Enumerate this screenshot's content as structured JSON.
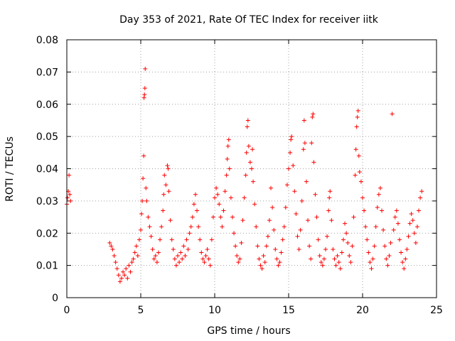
{
  "chart_data": {
    "type": "scatter",
    "title": "Day 353 of 2021, Rate Of TEC Index for receiver iitk",
    "xlabel": "GPS time / hours",
    "ylabel": "ROTI / TECUs",
    "xlim": [
      0,
      25
    ],
    "ylim": [
      0,
      0.08
    ],
    "xticks": [
      0,
      5,
      10,
      15,
      20,
      25
    ],
    "xtick_labels": [
      "0",
      "5",
      "10",
      "15",
      "20",
      "25"
    ],
    "yticks": [
      0,
      0.01,
      0.02,
      0.03,
      0.04,
      0.05,
      0.06,
      0.07,
      0.08
    ],
    "ytick_labels": [
      "0",
      "0.01",
      "0.02",
      "0.03",
      "0.04",
      "0.05",
      "0.06",
      "0.07",
      "0.08"
    ],
    "grid": true,
    "marker": "plus",
    "color": "#ff0000",
    "series": [
      {
        "points": [
          [
            0.0,
            0.029
          ],
          [
            0.05,
            0.031
          ],
          [
            0.1,
            0.033
          ],
          [
            0.15,
            0.038
          ],
          [
            0.2,
            0.032
          ],
          [
            0.25,
            0.03
          ],
          [
            2.9,
            0.017
          ],
          [
            3.0,
            0.016
          ],
          [
            3.1,
            0.015
          ],
          [
            3.2,
            0.013
          ],
          [
            3.3,
            0.011
          ],
          [
            3.4,
            0.009
          ],
          [
            3.5,
            0.007
          ],
          [
            3.6,
            0.005
          ],
          [
            3.7,
            0.006
          ],
          [
            3.8,
            0.008
          ],
          [
            3.9,
            0.007
          ],
          [
            4.0,
            0.009
          ],
          [
            4.1,
            0.006
          ],
          [
            4.2,
            0.01
          ],
          [
            4.3,
            0.008
          ],
          [
            4.4,
            0.011
          ],
          [
            4.5,
            0.012
          ],
          [
            4.6,
            0.014
          ],
          [
            4.7,
            0.016
          ],
          [
            4.8,
            0.013
          ],
          [
            4.9,
            0.018
          ],
          [
            5.0,
            0.021
          ],
          [
            5.05,
            0.026
          ],
          [
            5.1,
            0.03
          ],
          [
            5.15,
            0.037
          ],
          [
            5.2,
            0.044
          ],
          [
            5.22,
            0.062
          ],
          [
            5.25,
            0.063
          ],
          [
            5.28,
            0.065
          ],
          [
            5.3,
            0.071
          ],
          [
            5.35,
            0.034
          ],
          [
            5.4,
            0.03
          ],
          [
            5.5,
            0.025
          ],
          [
            5.6,
            0.022
          ],
          [
            5.7,
            0.019
          ],
          [
            5.8,
            0.015
          ],
          [
            5.9,
            0.012
          ],
          [
            6.0,
            0.013
          ],
          [
            6.1,
            0.011
          ],
          [
            6.2,
            0.014
          ],
          [
            6.3,
            0.018
          ],
          [
            6.4,
            0.022
          ],
          [
            6.5,
            0.027
          ],
          [
            6.55,
            0.032
          ],
          [
            6.6,
            0.038
          ],
          [
            6.7,
            0.035
          ],
          [
            6.8,
            0.041
          ],
          [
            6.85,
            0.04
          ],
          [
            6.9,
            0.033
          ],
          [
            7.0,
            0.024
          ],
          [
            7.1,
            0.018
          ],
          [
            7.2,
            0.015
          ],
          [
            7.3,
            0.012
          ],
          [
            7.4,
            0.01
          ],
          [
            7.5,
            0.013
          ],
          [
            7.6,
            0.011
          ],
          [
            7.7,
            0.014
          ],
          [
            7.8,
            0.012
          ],
          [
            7.9,
            0.016
          ],
          [
            8.0,
            0.013
          ],
          [
            8.1,
            0.018
          ],
          [
            8.2,
            0.015
          ],
          [
            8.3,
            0.02
          ],
          [
            8.4,
            0.022
          ],
          [
            8.5,
            0.025
          ],
          [
            8.6,
            0.029
          ],
          [
            8.7,
            0.032
          ],
          [
            8.8,
            0.027
          ],
          [
            8.9,
            0.022
          ],
          [
            9.0,
            0.018
          ],
          [
            9.1,
            0.014
          ],
          [
            9.2,
            0.012
          ],
          [
            9.3,
            0.011
          ],
          [
            9.4,
            0.013
          ],
          [
            9.5,
            0.015
          ],
          [
            9.6,
            0.012
          ],
          [
            9.7,
            0.01
          ],
          [
            9.8,
            0.018
          ],
          [
            9.9,
            0.025
          ],
          [
            10.0,
            0.031
          ],
          [
            10.1,
            0.034
          ],
          [
            10.2,
            0.032
          ],
          [
            10.3,
            0.029
          ],
          [
            10.4,
            0.025
          ],
          [
            10.5,
            0.022
          ],
          [
            10.6,
            0.027
          ],
          [
            10.7,
            0.033
          ],
          [
            10.8,
            0.038
          ],
          [
            10.85,
            0.043
          ],
          [
            10.9,
            0.047
          ],
          [
            10.95,
            0.049
          ],
          [
            11.0,
            0.04
          ],
          [
            11.1,
            0.031
          ],
          [
            11.2,
            0.025
          ],
          [
            11.3,
            0.02
          ],
          [
            11.4,
            0.016
          ],
          [
            11.5,
            0.013
          ],
          [
            11.6,
            0.011
          ],
          [
            11.7,
            0.012
          ],
          [
            11.8,
            0.017
          ],
          [
            11.9,
            0.024
          ],
          [
            12.0,
            0.031
          ],
          [
            12.1,
            0.038
          ],
          [
            12.15,
            0.045
          ],
          [
            12.2,
            0.053
          ],
          [
            12.25,
            0.055
          ],
          [
            12.3,
            0.047
          ],
          [
            12.4,
            0.042
          ],
          [
            12.5,
            0.04
          ],
          [
            12.55,
            0.046
          ],
          [
            12.6,
            0.036
          ],
          [
            12.7,
            0.029
          ],
          [
            12.8,
            0.022
          ],
          [
            12.9,
            0.016
          ],
          [
            13.0,
            0.012
          ],
          [
            13.1,
            0.01
          ],
          [
            13.2,
            0.009
          ],
          [
            13.3,
            0.013
          ],
          [
            13.4,
            0.011
          ],
          [
            13.5,
            0.016
          ],
          [
            13.6,
            0.019
          ],
          [
            13.7,
            0.024
          ],
          [
            13.8,
            0.034
          ],
          [
            13.9,
            0.028
          ],
          [
            14.0,
            0.021
          ],
          [
            14.1,
            0.015
          ],
          [
            14.2,
            0.012
          ],
          [
            14.3,
            0.01
          ],
          [
            14.4,
            0.011
          ],
          [
            14.5,
            0.014
          ],
          [
            14.6,
            0.018
          ],
          [
            14.7,
            0.022
          ],
          [
            14.8,
            0.028
          ],
          [
            14.9,
            0.035
          ],
          [
            15.0,
            0.04
          ],
          [
            15.1,
            0.045
          ],
          [
            15.15,
            0.049
          ],
          [
            15.2,
            0.05
          ],
          [
            15.3,
            0.041
          ],
          [
            15.4,
            0.033
          ],
          [
            15.5,
            0.026
          ],
          [
            15.6,
            0.019
          ],
          [
            15.7,
            0.015
          ],
          [
            15.8,
            0.021
          ],
          [
            15.9,
            0.03
          ],
          [
            16.0,
            0.046
          ],
          [
            16.05,
            0.055
          ],
          [
            16.1,
            0.048
          ],
          [
            16.2,
            0.036
          ],
          [
            16.3,
            0.024
          ],
          [
            16.4,
            0.016
          ],
          [
            16.5,
            0.012
          ],
          [
            16.55,
            0.048
          ],
          [
            16.6,
            0.056
          ],
          [
            16.65,
            0.057
          ],
          [
            16.7,
            0.042
          ],
          [
            16.8,
            0.032
          ],
          [
            16.9,
            0.025
          ],
          [
            17.0,
            0.018
          ],
          [
            17.1,
            0.013
          ],
          [
            17.2,
            0.011
          ],
          [
            17.3,
            0.01
          ],
          [
            17.4,
            0.012
          ],
          [
            17.5,
            0.015
          ],
          [
            17.6,
            0.019
          ],
          [
            17.7,
            0.027
          ],
          [
            17.75,
            0.031
          ],
          [
            17.8,
            0.033
          ],
          [
            17.9,
            0.024
          ],
          [
            18.0,
            0.015
          ],
          [
            18.1,
            0.012
          ],
          [
            18.2,
            0.01
          ],
          [
            18.3,
            0.013
          ],
          [
            18.4,
            0.011
          ],
          [
            18.5,
            0.009
          ],
          [
            18.6,
            0.014
          ],
          [
            18.7,
            0.018
          ],
          [
            18.8,
            0.023
          ],
          [
            18.9,
            0.02
          ],
          [
            19.0,
            0.017
          ],
          [
            19.1,
            0.013
          ],
          [
            19.2,
            0.011
          ],
          [
            19.3,
            0.016
          ],
          [
            19.4,
            0.025
          ],
          [
            19.5,
            0.038
          ],
          [
            19.55,
            0.046
          ],
          [
            19.6,
            0.053
          ],
          [
            19.65,
            0.056
          ],
          [
            19.7,
            0.058
          ],
          [
            19.75,
            0.044
          ],
          [
            19.8,
            0.039
          ],
          [
            19.9,
            0.036
          ],
          [
            20.0,
            0.031
          ],
          [
            20.1,
            0.027
          ],
          [
            20.2,
            0.022
          ],
          [
            20.3,
            0.018
          ],
          [
            20.4,
            0.014
          ],
          [
            20.5,
            0.011
          ],
          [
            20.6,
            0.009
          ],
          [
            20.7,
            0.012
          ],
          [
            20.8,
            0.016
          ],
          [
            20.9,
            0.022
          ],
          [
            21.0,
            0.028
          ],
          [
            21.1,
            0.032
          ],
          [
            21.2,
            0.034
          ],
          [
            21.3,
            0.027
          ],
          [
            21.4,
            0.021
          ],
          [
            21.5,
            0.016
          ],
          [
            21.6,
            0.012
          ],
          [
            21.7,
            0.01
          ],
          [
            21.8,
            0.013
          ],
          [
            21.9,
            0.017
          ],
          [
            22.0,
            0.057
          ],
          [
            22.1,
            0.021
          ],
          [
            22.2,
            0.025
          ],
          [
            22.3,
            0.027
          ],
          [
            22.4,
            0.023
          ],
          [
            22.5,
            0.018
          ],
          [
            22.6,
            0.014
          ],
          [
            22.7,
            0.011
          ],
          [
            22.8,
            0.009
          ],
          [
            22.9,
            0.012
          ],
          [
            23.0,
            0.015
          ],
          [
            23.1,
            0.019
          ],
          [
            23.2,
            0.023
          ],
          [
            23.3,
            0.026
          ],
          [
            23.4,
            0.024
          ],
          [
            23.5,
            0.02
          ],
          [
            23.6,
            0.017
          ],
          [
            23.7,
            0.022
          ],
          [
            23.8,
            0.027
          ],
          [
            23.9,
            0.031
          ],
          [
            24.0,
            0.033
          ]
        ]
      }
    ]
  }
}
